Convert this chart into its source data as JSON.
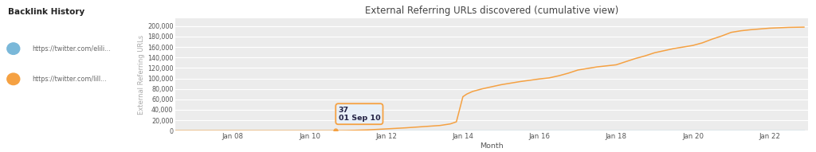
{
  "title": "External Referring URLs discovered (cumulative view)",
  "xlabel": "Month",
  "ylabel": "External Referring URLs",
  "legend_title": "Backlink History",
  "legend_items": [
    {
      "label": "https://twitter.com/elili...",
      "color": "#7ab8d9"
    },
    {
      "label": "https://twitter.com/lill...",
      "color": "#f5a142"
    }
  ],
  "yticks": [
    0,
    20000,
    40000,
    60000,
    80000,
    100000,
    120000,
    140000,
    160000,
    180000,
    200000
  ],
  "ytick_labels": [
    "0",
    "20,000",
    "40,000",
    "60,000",
    "80,000",
    "100,000",
    "120,000",
    "140,000",
    "160,000",
    "180,000",
    "200,000"
  ],
  "xtick_years": [
    2008,
    2010,
    2012,
    2014,
    2016,
    2018,
    2020,
    2022
  ],
  "xlim_start": 2006.5,
  "xlim_end": 2023.0,
  "ylim": [
    0,
    215000
  ],
  "plot_bg_color": "#ececec",
  "grid_color": "#ffffff",
  "tooltip_text_line1": "37",
  "tooltip_text_line2": "01 Sep 10",
  "tooltip_x": 2010.67,
  "tooltip_y": 37,
  "series1_x": [
    2006.5,
    2007.0,
    2008.0,
    2009.0,
    2010.0,
    2011.0,
    2012.0,
    2013.0,
    2014.0,
    2015.0,
    2016.0,
    2017.0,
    2018.0,
    2019.0,
    2020.0,
    2021.0,
    2022.0,
    2022.9
  ],
  "series1_y": [
    0,
    0,
    0,
    0,
    0,
    0,
    0,
    0,
    0,
    0,
    0,
    0,
    0,
    0,
    0,
    0,
    0,
    0
  ],
  "series2_x": [
    2006.5,
    2007.0,
    2008.0,
    2009.0,
    2009.5,
    2010.0,
    2010.5,
    2010.67,
    2011.0,
    2011.5,
    2012.0,
    2012.5,
    2013.0,
    2013.4,
    2013.67,
    2013.83,
    2014.0,
    2014.1,
    2014.25,
    2014.5,
    2015.0,
    2015.5,
    2016.0,
    2016.25,
    2016.5,
    2016.75,
    2017.0,
    2017.25,
    2017.5,
    2018.0,
    2018.25,
    2018.5,
    2018.75,
    2019.0,
    2019.5,
    2020.0,
    2020.25,
    2020.5,
    2020.75,
    2021.0,
    2021.25,
    2021.5,
    2022.0,
    2022.5,
    2022.9
  ],
  "series2_y": [
    0,
    0,
    0,
    0,
    0,
    0,
    10,
    37,
    400,
    1500,
    3500,
    5500,
    8000,
    10000,
    13000,
    17000,
    65000,
    70000,
    75000,
    80000,
    88000,
    94000,
    99000,
    101000,
    105000,
    110000,
    116000,
    119000,
    122000,
    126000,
    132000,
    138000,
    143000,
    149000,
    157000,
    163000,
    168000,
    175000,
    181000,
    188000,
    191000,
    193000,
    196000,
    197500,
    198000
  ]
}
